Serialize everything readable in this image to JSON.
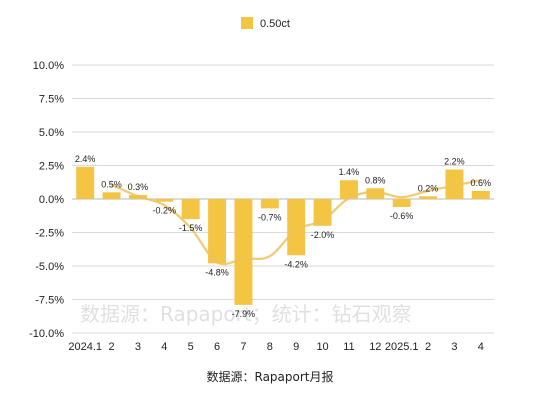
{
  "colors": {
    "bar": "#F4C443",
    "line": "#EDC25A",
    "grid": "#DADADA",
    "axis": "#C8C8C8"
  },
  "chart_data": {
    "type": "bar",
    "title": "",
    "xlabel": "",
    "ylabel": "",
    "ylim": [
      -10,
      10
    ],
    "yticks": [
      10,
      7.5,
      5,
      2.5,
      0,
      -2.5,
      -5,
      -7.5,
      -10
    ],
    "ytick_labels": [
      "10.0%",
      "7.5%",
      "5.0%",
      "2.5%",
      "0.0%",
      "-2.5%",
      "-5.0%",
      "-7.5%",
      "-10.0%"
    ],
    "grid": true,
    "legend": "top-center",
    "categories": [
      "2024.1",
      "2",
      "3",
      "4",
      "5",
      "6",
      "7",
      "8",
      "9",
      "10",
      "11",
      "12",
      "2025.1",
      "2",
      "3",
      "4"
    ],
    "series": [
      {
        "name": "0.50ct",
        "values": [
          2.4,
          0.5,
          0.3,
          -0.2,
          -1.5,
          -4.8,
          -7.9,
          -0.7,
          -4.2,
          -2.0,
          1.4,
          0.8,
          -0.6,
          0.2,
          2.2,
          0.6
        ],
        "labels": [
          "2.4%",
          "0.5%",
          "0.3%",
          "-0.2%",
          "-1.5%",
          "-4.8%",
          "-7.9%",
          "-0.7%",
          "-4.2%",
          "-2.0%",
          "1.4%",
          "0.8%",
          "-0.6%",
          "0.2%",
          "2.2%",
          "0.6%"
        ]
      }
    ],
    "trend_line": true
  },
  "watermark": "数据源：Rapaport；统计：钻石观察",
  "source_text": "数据源：Rapaport月报"
}
